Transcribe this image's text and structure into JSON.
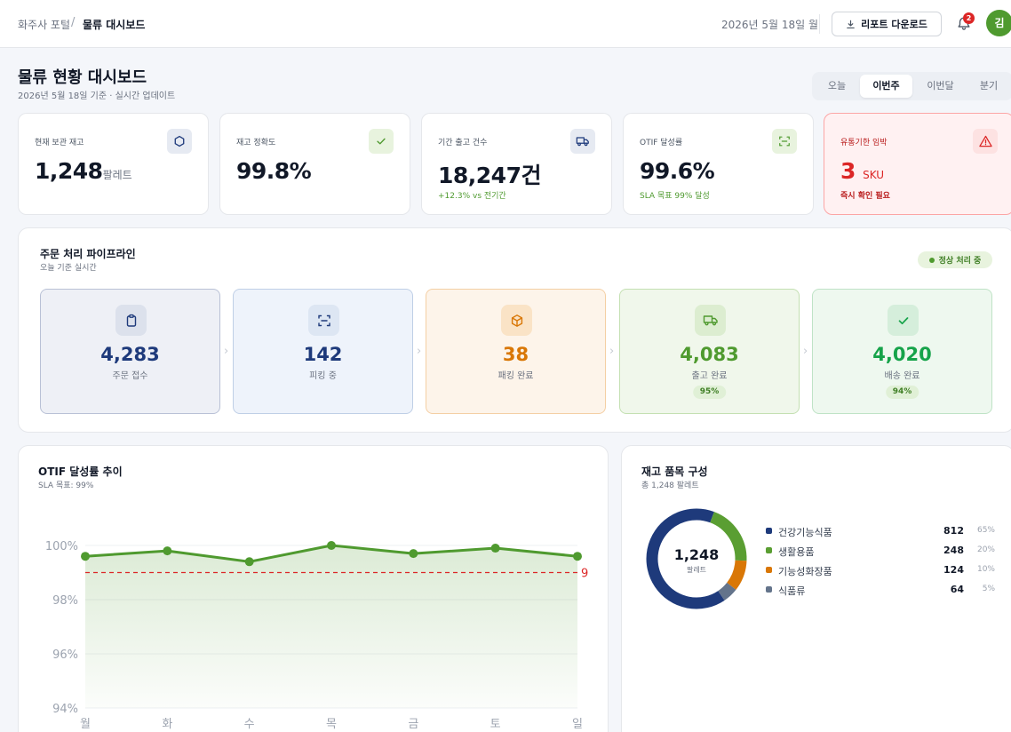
{
  "header": {
    "breadcrumb_portal": "화주사 포털",
    "breadcrumb_sep": "/",
    "breadcrumb_current": "물류 대시보드",
    "date": "2026년 5월 18일 월",
    "download_label": "리포트 다운로드",
    "notification_count": "2",
    "avatar_initial": "김"
  },
  "page": {
    "title": "물류 현황 대시보드",
    "subtitle": "2026년 5월 18일 기준 · 실시간 업데이트",
    "tabs": [
      {
        "label": "오늘",
        "active": false
      },
      {
        "label": "이번주",
        "active": true
      },
      {
        "label": "이번달",
        "active": false
      },
      {
        "label": "분기",
        "active": false
      }
    ]
  },
  "kpis": [
    {
      "label": "현재 보관 재고",
      "value": "1,248",
      "unit": "팔레트",
      "note": "",
      "icon": "box-icon"
    },
    {
      "label": "재고 정확도",
      "value": "99.8%",
      "unit": "",
      "note": "",
      "icon": "check-icon"
    },
    {
      "label": "기간 출고 건수",
      "value": "18,247건",
      "unit": "",
      "note": "+12.3% vs 전기간",
      "icon": "truck-icon"
    },
    {
      "label": "OTIF 달성률",
      "value": "99.6%",
      "unit": "",
      "note": "SLA 목표 99% 달성",
      "icon": "scan-icon"
    },
    {
      "label": "유통기한 임박",
      "value": "3",
      "unit": "SKU",
      "note": "즉시 확인 필요",
      "icon": "warning-icon"
    }
  ],
  "pipeline": {
    "title": "주문 처리 파이프라인",
    "subtitle": "오늘 기준 실시간",
    "status": "정상 처리 중",
    "arrow": "›",
    "stages": [
      {
        "label": "주문 접수",
        "value": "4,283",
        "pct": "",
        "icon": "clipboard-icon"
      },
      {
        "label": "피킹 중",
        "value": "142",
        "pct": "",
        "icon": "scan-icon"
      },
      {
        "label": "패킹 완료",
        "value": "38",
        "pct": "",
        "icon": "package-icon"
      },
      {
        "label": "출고 완료",
        "value": "4,083",
        "pct": "95%",
        "icon": "truck-icon"
      },
      {
        "label": "배송 완료",
        "value": "4,020",
        "pct": "94%",
        "icon": "check-icon"
      }
    ]
  },
  "otif": {
    "title": "OTIF 달성률 추이",
    "subtitle": "SLA 목표: 99%",
    "target_label": "9"
  },
  "inventory": {
    "title": "재고 품목 구성",
    "subtitle": "총 1,248 팔레트",
    "center_value": "1,248",
    "center_label": "팔레트"
  },
  "chart_data": [
    {
      "type": "line",
      "title": "OTIF 달성률 추이",
      "x": [
        "월",
        "화",
        "수",
        "목",
        "금",
        "토",
        "일"
      ],
      "series": [
        {
          "values": [
            99.6,
            99.8,
            99.4,
            100.0,
            99.7,
            99.9,
            99.6
          ]
        }
      ],
      "target": 99,
      "ylim": [
        94,
        100
      ],
      "yticks": [
        94,
        96,
        98,
        100
      ],
      "ytick_labels": [
        "94%",
        "96%",
        "98%",
        "100%"
      ],
      "grid": true,
      "colors": {
        "line": "#4f9a2f",
        "target": "#dc2626"
      }
    },
    {
      "type": "pie",
      "title": "재고 품목 구성",
      "categories": [
        "건강기능식품",
        "생활용품",
        "기능성화장품",
        "식품류"
      ],
      "values": [
        812,
        248,
        124,
        64
      ],
      "percent_labels": [
        "65%",
        "20%",
        "10%",
        "5%"
      ],
      "colors": [
        "#1e3a7b",
        "#5a9e32",
        "#d97706",
        "#64748b"
      ]
    }
  ]
}
